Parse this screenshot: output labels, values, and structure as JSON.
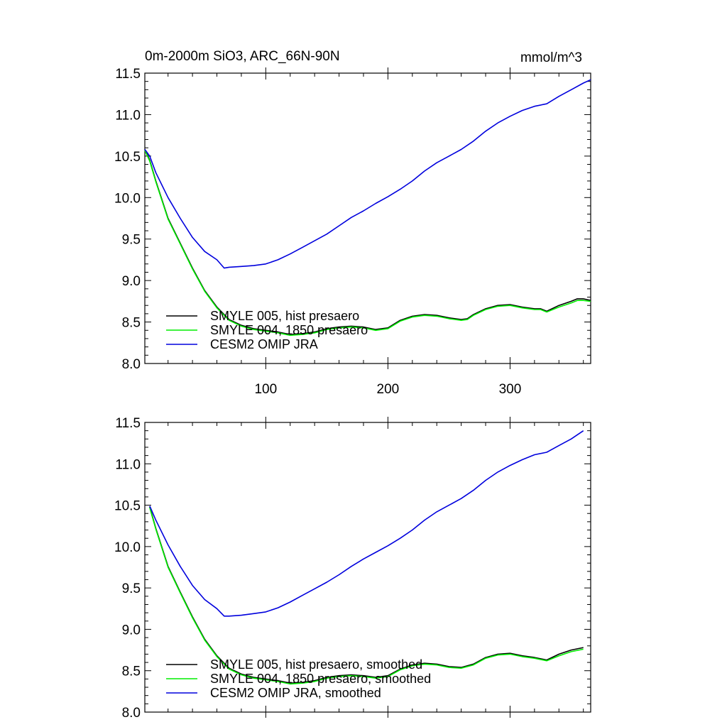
{
  "chart_data": [
    {
      "type": "line",
      "title_left": "0m-2000m SiO3, ARC_66N-90N",
      "title_right": "mmol/m^3",
      "xlim": [
        1,
        366
      ],
      "ylim": [
        8.0,
        11.5
      ],
      "yticks": [
        "8.0",
        "8.5",
        "9.0",
        "9.5",
        "10.0",
        "10.5",
        "11.0",
        "11.5"
      ],
      "xticks": [
        "100",
        "200",
        "300"
      ],
      "show_x_tick_labels": true,
      "grid": false,
      "legend_position": "bottom-left",
      "series": [
        {
          "name": "SMYLE 005, hist presaero",
          "color": "#000000",
          "x": [
            1,
            5,
            10,
            20,
            30,
            40,
            50,
            60,
            70,
            80,
            90,
            100,
            110,
            120,
            130,
            140,
            150,
            160,
            170,
            180,
            190,
            200,
            210,
            220,
            230,
            240,
            250,
            260,
            265,
            270,
            280,
            290,
            300,
            310,
            320,
            325,
            330,
            340,
            350,
            355,
            360,
            366
          ],
          "y": [
            10.58,
            10.45,
            10.2,
            9.75,
            9.45,
            9.15,
            8.88,
            8.68,
            8.53,
            8.46,
            8.42,
            8.4,
            8.38,
            8.35,
            8.36,
            8.38,
            8.42,
            8.44,
            8.45,
            8.44,
            8.41,
            8.43,
            8.52,
            8.57,
            8.59,
            8.58,
            8.55,
            8.53,
            8.54,
            8.59,
            8.66,
            8.7,
            8.71,
            8.68,
            8.66,
            8.66,
            8.63,
            8.7,
            8.75,
            8.78,
            8.78,
            8.76
          ]
        },
        {
          "name": "SMYLE 004, 1850 presaero",
          "color": "#00ee00",
          "x": [
            1,
            5,
            10,
            20,
            30,
            40,
            50,
            60,
            70,
            80,
            90,
            100,
            110,
            120,
            130,
            140,
            150,
            160,
            170,
            180,
            190,
            200,
            210,
            220,
            230,
            240,
            250,
            260,
            265,
            270,
            280,
            290,
            300,
            310,
            320,
            325,
            330,
            340,
            350,
            355,
            360,
            366
          ],
          "y": [
            10.57,
            10.44,
            10.19,
            9.74,
            9.44,
            9.14,
            8.87,
            8.67,
            8.52,
            8.45,
            8.41,
            8.39,
            8.37,
            8.34,
            8.35,
            8.37,
            8.41,
            8.43,
            8.44,
            8.43,
            8.4,
            8.42,
            8.51,
            8.56,
            8.58,
            8.57,
            8.54,
            8.52,
            8.53,
            8.58,
            8.65,
            8.69,
            8.7,
            8.67,
            8.65,
            8.65,
            8.62,
            8.68,
            8.73,
            8.76,
            8.76,
            8.75
          ]
        },
        {
          "name": "CESM2 OMIP JRA",
          "color": "#0000dd",
          "x": [
            1,
            5,
            10,
            20,
            30,
            40,
            50,
            60,
            66,
            70,
            80,
            90,
            100,
            110,
            120,
            130,
            140,
            150,
            160,
            170,
            180,
            190,
            200,
            210,
            220,
            230,
            240,
            250,
            260,
            270,
            280,
            290,
            300,
            310,
            320,
            330,
            340,
            350,
            360,
            366
          ],
          "y": [
            10.58,
            10.5,
            10.3,
            10.0,
            9.75,
            9.52,
            9.35,
            9.25,
            9.15,
            9.16,
            9.17,
            9.18,
            9.2,
            9.25,
            9.32,
            9.4,
            9.48,
            9.56,
            9.66,
            9.76,
            9.84,
            9.93,
            10.01,
            10.1,
            10.2,
            10.32,
            10.42,
            10.5,
            10.58,
            10.68,
            10.8,
            10.9,
            10.98,
            11.05,
            11.1,
            11.13,
            11.22,
            11.3,
            11.38,
            11.42
          ]
        }
      ]
    },
    {
      "type": "line",
      "title_left": "",
      "title_right": "",
      "xlim": [
        1,
        366
      ],
      "ylim": [
        8.0,
        11.5
      ],
      "yticks": [
        "8.0",
        "8.5",
        "9.0",
        "9.5",
        "10.0",
        "10.5",
        "11.0",
        "11.5"
      ],
      "xticks": [
        "100",
        "200",
        "300"
      ],
      "show_x_tick_labels": false,
      "grid": false,
      "legend_position": "bottom-left",
      "series": [
        {
          "name": "SMYLE 005, hist presaero, smoothed",
          "color": "#000000",
          "x": [
            5,
            10,
            20,
            30,
            40,
            50,
            60,
            70,
            80,
            90,
            100,
            110,
            120,
            130,
            140,
            150,
            160,
            170,
            180,
            190,
            200,
            210,
            220,
            230,
            240,
            250,
            260,
            270,
            280,
            290,
            300,
            310,
            320,
            330,
            340,
            350,
            360
          ],
          "y": [
            10.48,
            10.22,
            9.76,
            9.45,
            9.15,
            8.88,
            8.68,
            8.53,
            8.46,
            8.42,
            8.4,
            8.38,
            8.35,
            8.36,
            8.38,
            8.42,
            8.44,
            8.45,
            8.44,
            8.42,
            8.44,
            8.52,
            8.57,
            8.59,
            8.58,
            8.55,
            8.54,
            8.58,
            8.66,
            8.7,
            8.71,
            8.68,
            8.66,
            8.63,
            8.7,
            8.75,
            8.78
          ]
        },
        {
          "name": "SMYLE 004, 1850 presaero, smoothed",
          "color": "#00ee00",
          "x": [
            5,
            10,
            20,
            30,
            40,
            50,
            60,
            70,
            80,
            90,
            100,
            110,
            120,
            130,
            140,
            150,
            160,
            170,
            180,
            190,
            200,
            210,
            220,
            230,
            240,
            250,
            260,
            270,
            280,
            290,
            300,
            310,
            320,
            330,
            340,
            350,
            360
          ],
          "y": [
            10.47,
            10.21,
            9.75,
            9.44,
            9.14,
            8.87,
            8.67,
            8.52,
            8.45,
            8.41,
            8.39,
            8.37,
            8.34,
            8.35,
            8.37,
            8.41,
            8.43,
            8.44,
            8.43,
            8.41,
            8.43,
            8.51,
            8.56,
            8.58,
            8.57,
            8.54,
            8.53,
            8.57,
            8.65,
            8.69,
            8.7,
            8.67,
            8.65,
            8.62,
            8.68,
            8.73,
            8.76
          ]
        },
        {
          "name": "CESM2 OMIP JRA, smoothed",
          "color": "#0000dd",
          "x": [
            5,
            10,
            20,
            30,
            40,
            50,
            60,
            66,
            70,
            80,
            90,
            100,
            110,
            120,
            130,
            140,
            150,
            160,
            170,
            180,
            190,
            200,
            210,
            220,
            230,
            240,
            250,
            260,
            270,
            280,
            290,
            300,
            310,
            320,
            330,
            340,
            350,
            360
          ],
          "y": [
            10.49,
            10.32,
            10.02,
            9.76,
            9.53,
            9.36,
            9.25,
            9.16,
            9.16,
            9.17,
            9.19,
            9.21,
            9.26,
            9.33,
            9.41,
            9.49,
            9.57,
            9.66,
            9.76,
            9.85,
            9.93,
            10.01,
            10.1,
            10.2,
            10.32,
            10.42,
            10.5,
            10.58,
            10.68,
            10.8,
            10.9,
            10.98,
            11.05,
            11.11,
            11.14,
            11.22,
            11.3,
            11.4
          ]
        }
      ]
    }
  ]
}
